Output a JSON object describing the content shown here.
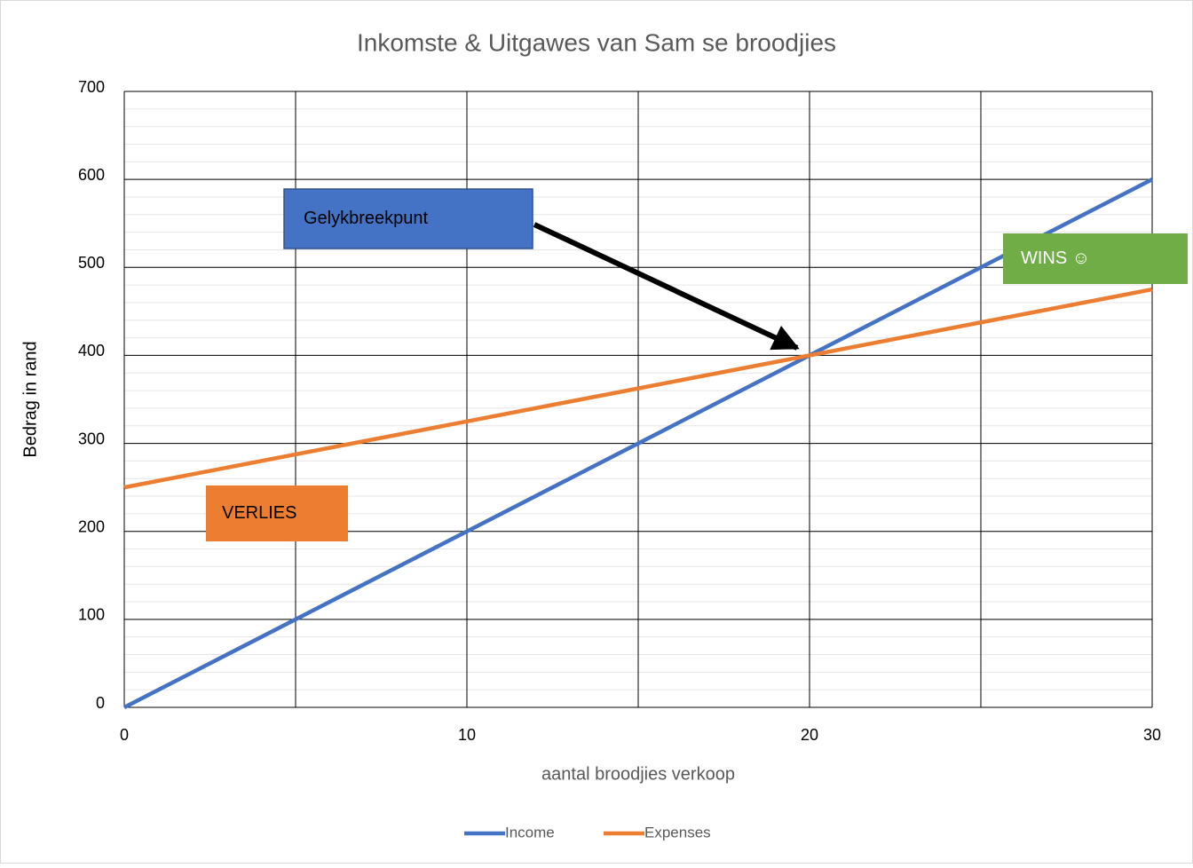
{
  "chart_data": {
    "type": "line",
    "title": "Inkomste & Uitgawes van Sam se broodjies",
    "x_label": "aantal broodjies verkoop",
    "y_label": "Bedrag in rand",
    "x": [
      0,
      5,
      10,
      15,
      20,
      25,
      30
    ],
    "series": [
      {
        "name": "Income",
        "color": "#4472c4",
        "values": [
          0,
          100,
          200,
          300,
          400,
          500,
          600
        ]
      },
      {
        "name": "Expenses",
        "color": "#ed7d31",
        "values": [
          250,
          287.5,
          325,
          362.5,
          400,
          437.5,
          475
        ]
      }
    ],
    "xlim": [
      0,
      30
    ],
    "xticks": [
      0,
      10,
      20,
      30
    ],
    "xgrid": [
      0,
      5,
      10,
      15,
      20,
      25,
      30
    ],
    "ylim": [
      0,
      700
    ],
    "yticks": [
      0,
      100,
      200,
      300,
      400,
      500,
      600,
      700
    ],
    "yminor_step": 20,
    "grid": true,
    "legend": "bottom",
    "annotations": [
      {
        "text": "Gelykbreekpunt",
        "color": "#4472c4"
      },
      {
        "text": "WINS ☺",
        "color": "#70ad47"
      },
      {
        "text": "VERLIES",
        "color": "#ed7d31"
      }
    ]
  }
}
